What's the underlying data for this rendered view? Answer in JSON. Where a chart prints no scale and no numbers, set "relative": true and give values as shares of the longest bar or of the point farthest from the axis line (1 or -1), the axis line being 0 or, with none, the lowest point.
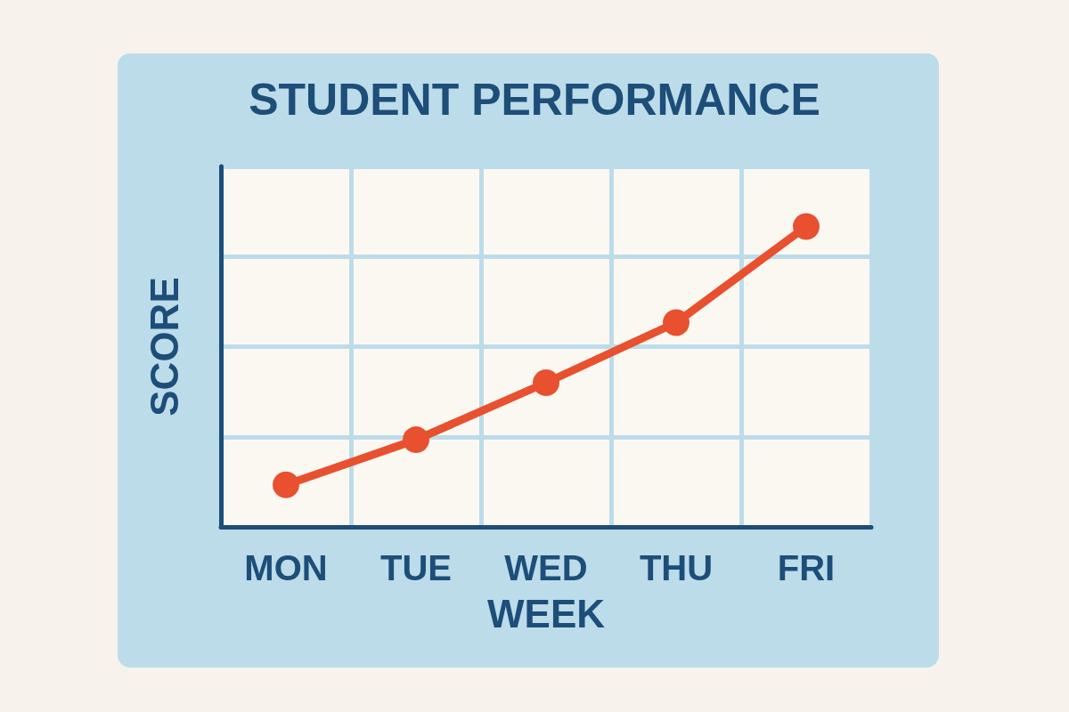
{
  "chart_data": {
    "type": "line",
    "title": "STUDENT PERFORMANCE",
    "xlabel": "WEEK",
    "ylabel": "SCORE",
    "categories": [
      "MON",
      "TUE",
      "WED",
      "THU",
      "FRI"
    ],
    "series": [
      {
        "color": "#e8502f",
        "values": [
          0.14,
          0.29,
          0.48,
          0.68,
          1.0
        ]
      }
    ],
    "relative": true,
    "grid": true,
    "marker": "circle",
    "line_style": "solid"
  }
}
